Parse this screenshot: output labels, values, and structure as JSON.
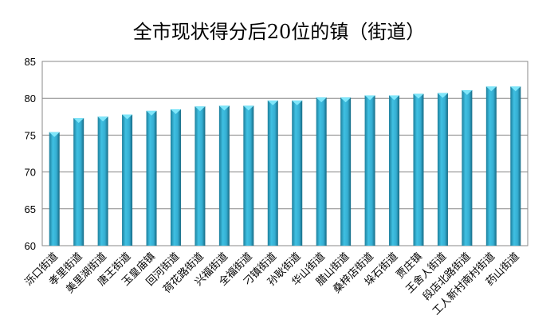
{
  "chart_data": {
    "type": "bar",
    "title": "全市现状得分后20位的镇（街道）",
    "categories": [
      "泺口街道",
      "孝里街道",
      "美里湖街道",
      "唐王街道",
      "玉皇庙镇",
      "回河街道",
      "荷花路街道",
      "兴福街道",
      "全福街道",
      "刁镇街道",
      "孙耿街道",
      "华山街道",
      "腊山街道",
      "桑梓店街道",
      "垛石街道",
      "贾庄镇",
      "王舍人街道",
      "段店北路街道",
      "工人新村南村街道",
      "药山街道"
    ],
    "values": [
      75.4,
      77.3,
      77.5,
      77.8,
      78.3,
      78.5,
      78.9,
      79.0,
      79.0,
      79.7,
      79.7,
      80.1,
      80.1,
      80.4,
      80.4,
      80.6,
      80.7,
      81.1,
      81.6,
      81.6
    ],
    "ylim": [
      60,
      85
    ],
    "yticks": [
      60,
      65,
      70,
      75,
      80,
      85
    ],
    "grid": true,
    "legend": "none",
    "bar_color": "#3ab4d6"
  }
}
